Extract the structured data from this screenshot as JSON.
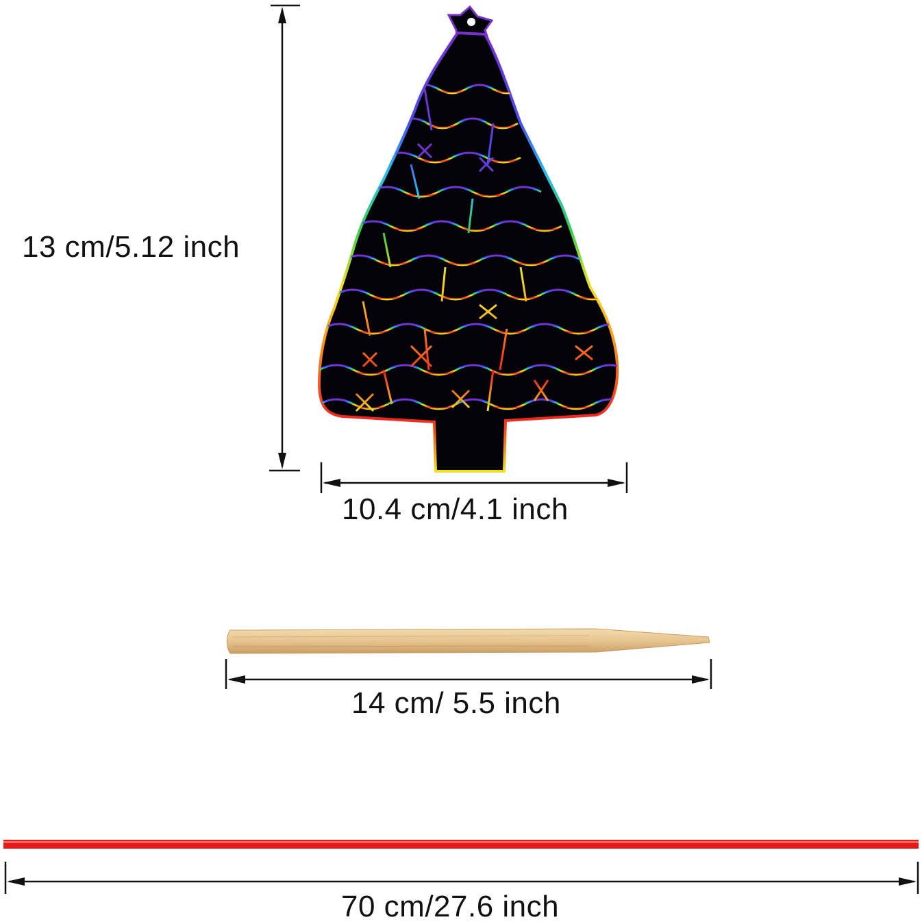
{
  "dimensions": {
    "ornament_height": "13 cm/5.12 inch",
    "ornament_width": "10.4 cm/4.1 inch",
    "stick_length": "14 cm/ 5.5 inch",
    "ribbon_length": "70 cm/27.6 inch"
  },
  "colors": {
    "ribbon": "#e8191b",
    "stick": "#e7c48f",
    "ornament_background": "#050308",
    "rainbow": [
      "#7a2fd0",
      "#2f6bff",
      "#25c0f0",
      "#3ad04a",
      "#f2e21f",
      "#ff8a1c",
      "#f0261e"
    ]
  }
}
